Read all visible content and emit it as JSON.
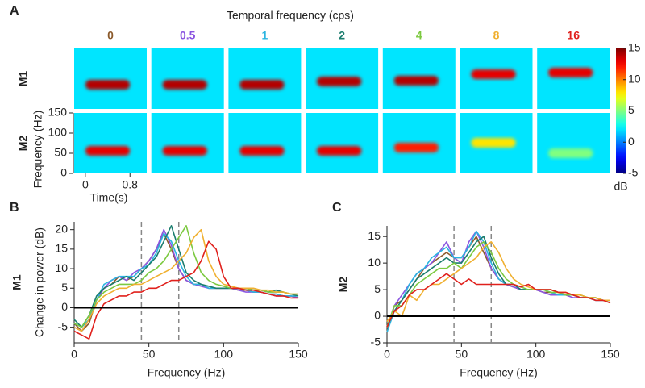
{
  "chart_data": [
    {
      "type": "heatmap",
      "panel": "A",
      "title": "Temporal frequency (cps)",
      "columns": [
        {
          "name": "0",
          "color": "#8b5a2b"
        },
        {
          "name": "0.5",
          "color": "#8a55e0"
        },
        {
          "name": "1",
          "color": "#2ab4e0"
        },
        {
          "name": "2",
          "color": "#1b7d6e"
        },
        {
          "name": "4",
          "color": "#7cc940"
        },
        {
          "name": "8",
          "color": "#f0b030"
        },
        {
          "name": "16",
          "color": "#e0201c"
        }
      ],
      "rows": [
        {
          "label": "M1",
          "background_db": 2,
          "band_hz": [
            60,
            60,
            60,
            68,
            70,
            86,
            90
          ],
          "band_db": [
            14,
            14,
            14,
            14,
            14,
            13,
            13
          ]
        },
        {
          "label": "M2",
          "background_db": 2,
          "band_hz": [
            56,
            56,
            56,
            56,
            64,
            76,
            50
          ],
          "band_db": [
            13,
            13,
            13,
            13,
            12,
            8,
            5
          ]
        }
      ],
      "ylabel": "Frequency (Hz)",
      "xlabel": "Time(s)",
      "xlim": [
        -0.2,
        1.1
      ],
      "xticks": [
        0,
        0.8
      ],
      "ylim": [
        0,
        150
      ],
      "yticks": [
        0,
        50,
        100,
        150
      ],
      "colorbar": {
        "lim": [
          -5,
          15
        ],
        "ticks": [
          -5,
          0,
          5,
          10,
          15
        ],
        "label": "dB"
      }
    },
    {
      "type": "line",
      "panel": "B",
      "row_label": "M1",
      "ylabel": "Change in power (dB)",
      "xlabel": "Frequency (Hz)",
      "x": [
        0,
        5,
        10,
        15,
        20,
        25,
        30,
        35,
        40,
        45,
        50,
        55,
        60,
        65,
        70,
        75,
        80,
        85,
        90,
        95,
        100,
        105,
        110,
        115,
        120,
        125,
        130,
        135,
        140,
        145,
        150
      ],
      "series": [
        {
          "color": "#8b5a2b",
          "values": [
            -4,
            -6,
            -4,
            2,
            5,
            6,
            8,
            7,
            8,
            10,
            12,
            15,
            19,
            15,
            10,
            7,
            6,
            6,
            5,
            5,
            5,
            5,
            4.5,
            4.5,
            4,
            4,
            3.5,
            3.5,
            3,
            3,
            2.5
          ]
        },
        {
          "color": "#8a55e0",
          "values": [
            -5,
            -6,
            -3,
            2,
            5,
            7,
            8,
            7,
            9,
            10,
            12,
            15,
            20,
            16,
            10,
            7,
            6,
            5.5,
            5,
            5,
            5,
            5,
            4.5,
            4,
            4,
            4,
            3.5,
            3,
            3,
            3,
            2.5
          ]
        },
        {
          "color": "#2ab4e0",
          "values": [
            -4,
            -5,
            -3,
            2,
            6,
            7,
            8,
            8,
            8,
            10,
            11,
            14,
            19,
            17,
            12,
            8,
            6,
            6,
            5,
            5,
            5,
            5,
            5,
            4.5,
            4,
            4,
            3.5,
            3.5,
            3,
            3,
            3
          ]
        },
        {
          "color": "#1b7d6e",
          "values": [
            -3,
            -5,
            -2,
            3,
            5,
            6,
            7,
            8,
            7,
            9,
            11,
            13,
            17,
            21,
            15,
            9,
            7,
            6,
            5.5,
            5,
            5,
            5,
            5,
            5,
            4.5,
            4.5,
            4,
            4.5,
            4,
            3.5,
            3
          ]
        },
        {
          "color": "#7cc940",
          "values": [
            -4,
            -5,
            -2,
            2,
            4,
            5,
            6,
            6,
            6,
            7,
            9,
            10,
            12,
            15,
            18,
            21,
            14,
            9,
            7,
            6,
            5.5,
            5,
            5,
            5,
            4.5,
            4.5,
            4,
            4,
            4,
            3.5,
            3.5
          ]
        },
        {
          "color": "#f0b030",
          "values": [
            -5,
            -6,
            -3,
            1,
            3,
            4,
            5,
            5,
            6,
            6,
            7,
            8,
            9,
            10,
            12,
            14,
            18,
            20,
            12,
            8,
            6,
            5.5,
            5,
            5,
            5,
            4.5,
            4.5,
            4,
            4,
            3.5,
            3.5
          ]
        },
        {
          "color": "#e0201c",
          "values": [
            -6,
            -7,
            -8,
            -2,
            1,
            2,
            3,
            3,
            4,
            4,
            5,
            5,
            6,
            7,
            7,
            8,
            9,
            12,
            17,
            15,
            8,
            5,
            5,
            4.5,
            4.5,
            4,
            3.5,
            3,
            3,
            2.5,
            2.5
          ]
        }
      ],
      "xlim": [
        0,
        150
      ],
      "xticks": [
        0,
        50,
        100,
        150
      ],
      "ylim": [
        -9,
        22
      ],
      "yticks": [
        -5,
        0,
        5,
        10,
        15,
        20
      ],
      "vlines": [
        45,
        70
      ],
      "hline": 0
    },
    {
      "type": "line",
      "panel": "C",
      "row_label": "M2",
      "xlabel": "Frequency (Hz)",
      "x": [
        0,
        5,
        10,
        15,
        20,
        25,
        30,
        35,
        40,
        45,
        50,
        55,
        60,
        65,
        70,
        75,
        80,
        85,
        90,
        95,
        100,
        105,
        110,
        115,
        120,
        125,
        130,
        135,
        140,
        145,
        150
      ],
      "series": [
        {
          "color": "#8b5a2b",
          "values": [
            -3,
            2,
            3,
            5,
            7,
            9,
            10,
            11,
            12,
            11,
            11,
            13,
            15,
            12,
            9,
            7,
            6,
            5.5,
            5,
            5,
            5,
            4.5,
            4.5,
            4,
            4,
            4,
            3.5,
            3.5,
            3,
            3,
            3
          ]
        },
        {
          "color": "#8a55e0",
          "values": [
            -2,
            2,
            4,
            6,
            8,
            9,
            10,
            12,
            14,
            11,
            10,
            14,
            16,
            13,
            9,
            7,
            6,
            5.5,
            5,
            5,
            5,
            4.5,
            4,
            4,
            4,
            3.5,
            3.5,
            3.5,
            3,
            3,
            3
          ]
        },
        {
          "color": "#2ab4e0",
          "values": [
            -3,
            1,
            3,
            6,
            8,
            9,
            11,
            12,
            13,
            11,
            11,
            13,
            16,
            14,
            10,
            7,
            6,
            6,
            5,
            5,
            5,
            5,
            4.5,
            4,
            4,
            4,
            3.5,
            3.5,
            3,
            3,
            3
          ]
        },
        {
          "color": "#1b7d6e",
          "values": [
            -2,
            1,
            3,
            5,
            7,
            8,
            9,
            10,
            11,
            10,
            10,
            12,
            14,
            15,
            11,
            8,
            6,
            6,
            5,
            5,
            5,
            5,
            5,
            4.5,
            4,
            4,
            4,
            3.5,
            3.5,
            3,
            3
          ]
        },
        {
          "color": "#7cc940",
          "values": [
            -2,
            2,
            2,
            4,
            6,
            7,
            8,
            9,
            9,
            10,
            9,
            11,
            13,
            14,
            12,
            9,
            7,
            6,
            5.5,
            5,
            5,
            5,
            4.5,
            4.5,
            4,
            4,
            4,
            3.5,
            3.5,
            3,
            3
          ]
        },
        {
          "color": "#f0b030",
          "values": [
            -1,
            1,
            0,
            4,
            3,
            5,
            6,
            6,
            7,
            8,
            9,
            10,
            11,
            13,
            14,
            12,
            9,
            7,
            6,
            5.5,
            5,
            5,
            5,
            4.5,
            4.5,
            4,
            4,
            3.5,
            3.5,
            3,
            3
          ]
        },
        {
          "color": "#e0201c",
          "values": [
            -2,
            1,
            2,
            4,
            5,
            5,
            6,
            7,
            8,
            7,
            6,
            7,
            6,
            6,
            6,
            6,
            6,
            6,
            5.5,
            6,
            5,
            5,
            5,
            4.5,
            4.5,
            4,
            3.5,
            3.5,
            3,
            3,
            2.5
          ]
        }
      ],
      "xlim": [
        0,
        150
      ],
      "xticks": [
        0,
        50,
        100,
        150
      ],
      "ylim": [
        -5,
        17
      ],
      "yticks": [
        -5,
        0,
        5,
        10,
        15
      ],
      "vlines": [
        45,
        70
      ],
      "hline": 0
    }
  ]
}
